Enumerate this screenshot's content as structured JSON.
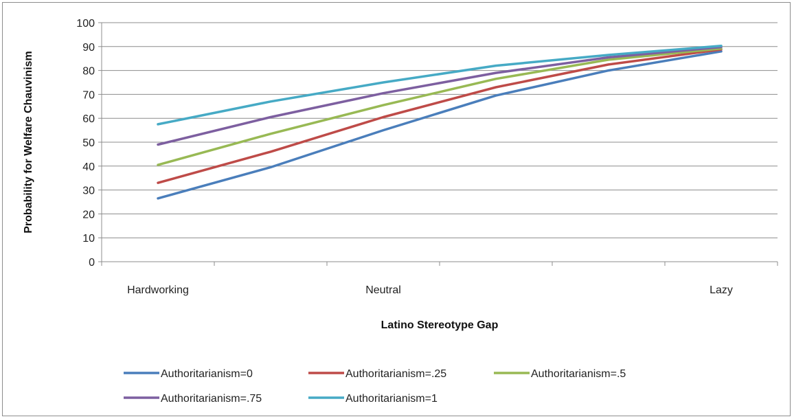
{
  "chart_data": {
    "type": "line",
    "title": "",
    "xlabel": "Latino Stereotype Gap",
    "ylabel": "Probability for Welfare Chauvinism",
    "ylim": [
      0,
      100
    ],
    "y_ticks": [
      "0",
      "10",
      "20",
      "30",
      "40",
      "50",
      "60",
      "70",
      "80",
      "90",
      "100"
    ],
    "x_labels": [
      "Hardworking",
      "Neutral",
      "Lazy"
    ],
    "x_label_positions": [
      0,
      2,
      5
    ],
    "x": [
      0,
      1,
      2,
      3,
      4,
      5
    ],
    "grid": true,
    "legend_position": "bottom",
    "series": [
      {
        "name": "Authoritarianism=0",
        "color": "#4a7ebb",
        "values": [
          26.5,
          39.5,
          55.0,
          69.5,
          80.0,
          88.0
        ]
      },
      {
        "name": "Authoritarianism=.25",
        "color": "#be4b48",
        "values": [
          33.0,
          46.0,
          60.5,
          73.0,
          82.5,
          88.8
        ]
      },
      {
        "name": "Authoritarianism=.5",
        "color": "#98b954",
        "values": [
          40.5,
          53.5,
          65.5,
          76.5,
          84.5,
          89.2
        ]
      },
      {
        "name": "Authoritarianism=.75",
        "color": "#7d5fa0",
        "values": [
          49.0,
          60.5,
          70.5,
          79.0,
          85.5,
          89.8
        ]
      },
      {
        "name": "Authoritarianism=1",
        "color": "#46aac5",
        "values": [
          57.5,
          67.0,
          75.0,
          82.0,
          86.5,
          90.3
        ]
      }
    ]
  }
}
